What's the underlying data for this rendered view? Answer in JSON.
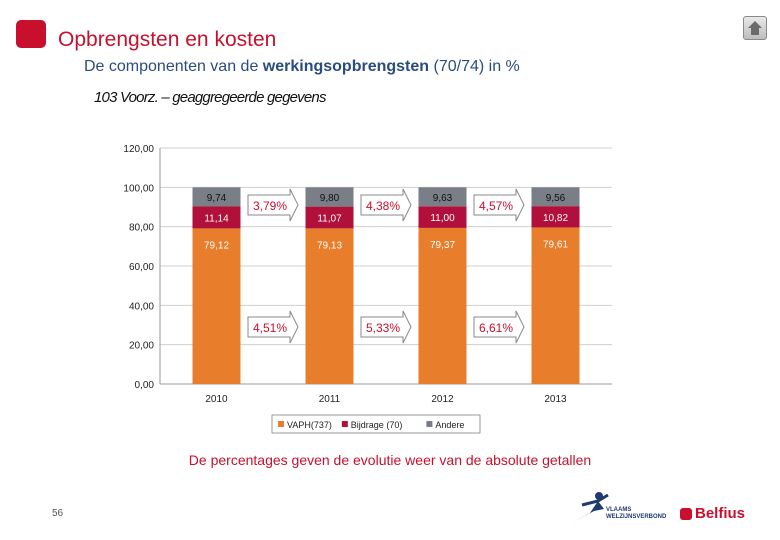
{
  "header": {
    "title": "Opbrengsten en kosten",
    "subtitle_pre": "De componenten van de ",
    "subtitle_bold": "werkingsopbrengsten",
    "subtitle_post": " (70/74) in %"
  },
  "chart_title": "103 Voorz. – geaggregeerde gegevens",
  "chart_data": {
    "type": "bar",
    "stacked": true,
    "categories": [
      "2010",
      "2011",
      "2012",
      "2013"
    ],
    "series": [
      {
        "name": "VAPH(737)",
        "color": "#e87d2c",
        "values": [
          79.12,
          79.13,
          79.37,
          79.61
        ],
        "labels": [
          "79,12",
          "79,13",
          "79,37",
          "79,61"
        ]
      },
      {
        "name": "Bijdrage (70)",
        "color": "#b0103a",
        "values": [
          11.14,
          11.07,
          11.0,
          10.82
        ],
        "labels": [
          "11,14",
          "11,07",
          "11,00",
          "10,82"
        ]
      },
      {
        "name": "Andere",
        "color": "#7a7e86",
        "values": [
          9.74,
          9.8,
          9.63,
          9.56
        ],
        "labels": [
          "9,74",
          "9,80",
          "9,63",
          "9,56"
        ]
      }
    ],
    "ylim": [
      0,
      120
    ],
    "yticks": [
      "0,00",
      "20,00",
      "40,00",
      "60,00",
      "80,00",
      "100,00",
      "120,00"
    ],
    "grid": true,
    "legend": "bottom",
    "growth_annotations": {
      "upper": [
        "3,79%",
        "4,38%",
        "4,57%"
      ],
      "lower": [
        "4,51%",
        "5,33%",
        "6,61%"
      ]
    }
  },
  "footer_note": "De percentages geven de evolutie weer van de absolute getallen",
  "page_number": "56",
  "logos": {
    "vlaams": "VLAAMS WELZIJNSVERBOND",
    "belfius": "Belfius"
  },
  "colors": {
    "accent": "#c8102e",
    "subtitle": "#2b4c7e"
  }
}
